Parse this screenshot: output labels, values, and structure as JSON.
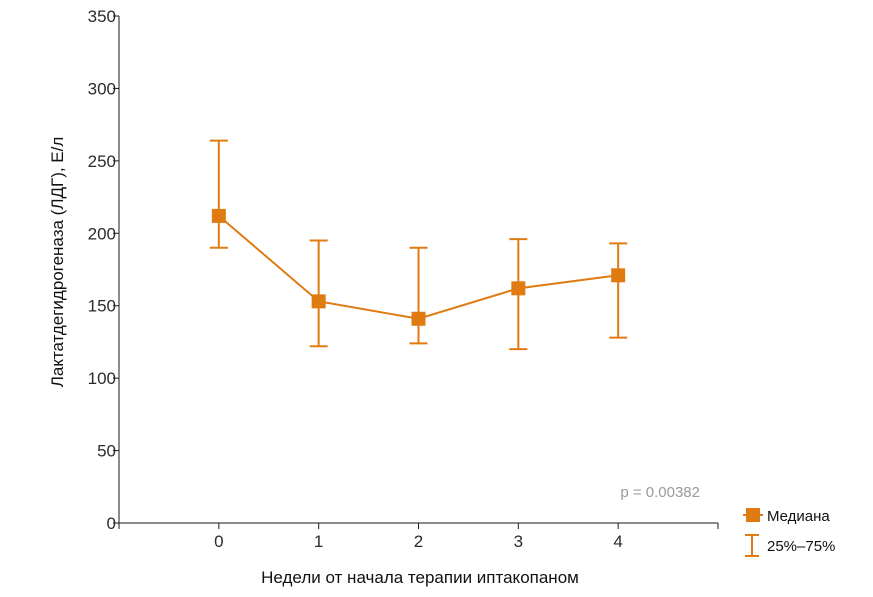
{
  "chart_data": {
    "type": "line",
    "xlabel": "Недели от начала терапии иптакопаном",
    "ylabel": "Лактатдегидрогеназа (ЛДГ), Е/л",
    "x": [
      0,
      1,
      2,
      3,
      4
    ],
    "x_ticks": [
      "0",
      "1",
      "2",
      "3",
      "4"
    ],
    "xlim": [
      -1,
      5
    ],
    "y_ticks": [
      "0",
      "50",
      "100",
      "150",
      "200",
      "250",
      "300",
      "350"
    ],
    "ylim": [
      0,
      350
    ],
    "series": [
      {
        "name": "Медиана",
        "values": [
          212,
          153,
          141,
          162,
          171
        ],
        "q25": [
          190,
          122,
          124,
          120,
          128
        ],
        "q75": [
          264,
          195,
          190,
          196,
          193
        ]
      }
    ],
    "errorbar_label": "25%–75%",
    "annotation": "p = 0.00382",
    "legend_position": "bottom-right",
    "grid": false,
    "color": "#E07B12"
  }
}
